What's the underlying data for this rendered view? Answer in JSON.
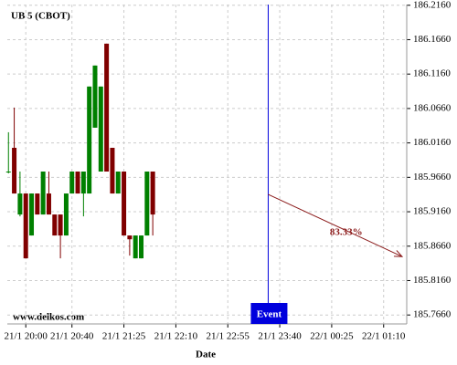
{
  "chart_data": {
    "type": "candlestick",
    "title": "UB 5 (CBOT)",
    "x_label": "Date",
    "watermark": "www.delkos.com",
    "x": [
      "21/1 19:45",
      "21/1 19:50",
      "21/1 19:55",
      "21/1 20:00",
      "21/1 20:05",
      "21/1 20:10",
      "21/1 20:15",
      "21/1 20:20",
      "21/1 20:25",
      "21/1 20:30",
      "21/1 20:35",
      "21/1 20:40",
      "21/1 20:45",
      "21/1 20:50",
      "21/1 20:55",
      "21/1 21:00",
      "21/1 21:05",
      "21/1 21:10",
      "21/1 21:15",
      "21/1 21:20",
      "21/1 21:25",
      "21/1 21:30",
      "21/1 21:35",
      "21/1 21:40",
      "21/1 21:45",
      "21/1 21:50"
    ],
    "open": [
      185.9744,
      186.0089,
      185.912,
      185.9425,
      185.8815,
      185.9425,
      185.912,
      185.9425,
      185.912,
      185.912,
      185.8815,
      185.9425,
      185.9744,
      185.9425,
      185.9425,
      186.0381,
      185.9744,
      186.1602,
      186.0089,
      185.9425,
      185.9744,
      185.8815,
      185.8483,
      185.8483,
      185.8815,
      185.9744
    ],
    "high": [
      186.0315,
      186.0673,
      185.9744,
      185.9425,
      185.9425,
      185.9425,
      185.9744,
      185.9744,
      185.912,
      185.912,
      185.9425,
      185.9744,
      185.9744,
      185.9744,
      186.0979,
      186.1284,
      186.0979,
      186.1602,
      186.0089,
      185.9744,
      185.9744,
      185.8815,
      185.8815,
      185.8815,
      185.9744,
      185.9744
    ],
    "low": [
      185.9717,
      185.9425,
      185.9093,
      185.8483,
      185.8815,
      185.912,
      185.912,
      185.912,
      185.8815,
      185.8483,
      185.8815,
      185.9425,
      185.9425,
      185.9093,
      185.9425,
      186.0381,
      185.9744,
      185.9744,
      185.9425,
      185.9425,
      185.8815,
      185.8523,
      185.8483,
      185.8483,
      185.8815,
      185.8815
    ],
    "close": [
      185.9744,
      185.9425,
      185.9425,
      185.8483,
      185.9425,
      185.912,
      185.9744,
      185.912,
      185.8815,
      185.8815,
      185.9425,
      185.9744,
      185.9425,
      185.9744,
      186.0979,
      186.1284,
      186.0979,
      185.9744,
      185.9425,
      185.9744,
      185.8815,
      185.876,
      185.8815,
      185.8815,
      185.9744,
      185.912
    ],
    "up_color": "#008000",
    "down_color": "#800000",
    "xlim": [
      "21/1 19:44",
      "22/1 01:30"
    ],
    "xticks": [
      "21/1 20:00",
      "21/1 20:40",
      "21/1 21:25",
      "21/1 22:10",
      "21/1 22:55",
      "21/1 23:40",
      "22/1 00:25",
      "22/1 01:10"
    ],
    "ylim": [
      185.753,
      186.217
    ],
    "yticks": [
      {
        "value": 186.216,
        "label": "186.2160"
      },
      {
        "value": 186.166,
        "label": "186.1660"
      },
      {
        "value": 186.116,
        "label": "186.1160"
      },
      {
        "value": 186.066,
        "label": "186.0660"
      },
      {
        "value": 186.016,
        "label": "186.0160"
      },
      {
        "value": 185.966,
        "label": "185.9660"
      },
      {
        "value": 185.916,
        "label": "185.9160"
      },
      {
        "value": 185.866,
        "label": "185.8660"
      },
      {
        "value": 185.816,
        "label": "185.8160"
      },
      {
        "value": 185.766,
        "label": "185.7660"
      }
    ],
    "grid": true,
    "event": {
      "label": "Event",
      "x": "21/1 23:30",
      "color": "#0000dd"
    },
    "projection": {
      "label": "83.33%",
      "x": [
        "21/1 23:30",
        "22/1 01:26"
      ],
      "y": [
        185.9412,
        185.8509
      ],
      "color": "#8b1a1a"
    }
  }
}
